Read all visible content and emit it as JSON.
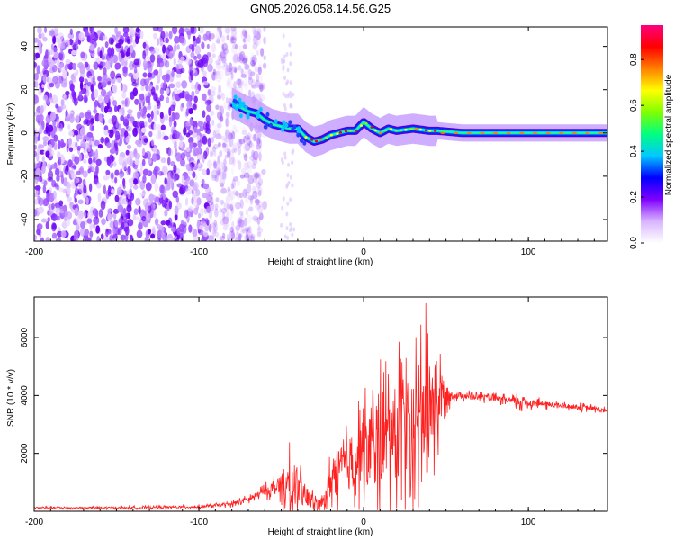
{
  "title": "GN05.2026.058.14.56.G25",
  "chart_data": [
    {
      "type": "heatmap",
      "title": "GN05.2026.058.14.56.G25",
      "xlabel": "Height of straight line (km)",
      "ylabel": "Frequency (Hz)",
      "xlim": [
        -200,
        148
      ],
      "ylim": [
        -50,
        49
      ],
      "xticks": [
        "-200",
        "-100",
        "0",
        "100"
      ],
      "yticks": [
        "-40",
        "-20",
        "0",
        "20",
        "40"
      ],
      "ridge": {
        "description": "dominant frequency trace",
        "x": [
          -80,
          -75,
          -70,
          -65,
          -60,
          -55,
          -50,
          -45,
          -40,
          -35,
          -30,
          -25,
          -20,
          -15,
          -10,
          -5,
          0,
          5,
          10,
          15,
          20,
          30,
          40,
          45,
          60,
          80,
          100,
          120,
          148
        ],
        "y": [
          14,
          12,
          10,
          9,
          6,
          4,
          3,
          2,
          2,
          -2,
          -4,
          -3,
          -1,
          0,
          1,
          1,
          5,
          2,
          0,
          2,
          1,
          2,
          1,
          1,
          0,
          0,
          0,
          0,
          0
        ]
      },
      "noise_region_x": [
        -200,
        -68
      ],
      "colorbar": {
        "label": "Normalized spectral amplitude",
        "range": [
          0,
          0.95
        ],
        "ticks": [
          "0.0",
          "0.2",
          "0.4",
          "0.6",
          "0.8"
        ],
        "colors": [
          "#ffffff",
          "#d8b4ff",
          "#7f00ff",
          "#0000ff",
          "#00c8ff",
          "#00ff80",
          "#80ff00",
          "#ffff00",
          "#ff8000",
          "#ff0000",
          "#ff0080"
        ]
      }
    },
    {
      "type": "line",
      "xlabel": "Height of straight line (km)",
      "ylabel": "SNR (10 * v/v)",
      "xlim": [
        -200,
        148
      ],
      "ylim": [
        0,
        7400
      ],
      "xticks": [
        "-200",
        "-100",
        "0",
        "100"
      ],
      "yticks": [
        "2000",
        "4000",
        "6000"
      ],
      "color": "#ff2020",
      "envelope": {
        "x": [
          -200,
          -150,
          -100,
          -80,
          -70,
          -60,
          -50,
          -45,
          -40,
          -35,
          -30,
          -25,
          -20,
          -15,
          -10,
          -5,
          0,
          5,
          10,
          15,
          20,
          25,
          30,
          35,
          40,
          45,
          50,
          55,
          60,
          70,
          80,
          90,
          95,
          100,
          110,
          120,
          130,
          140,
          148
        ],
        "base": [
          120,
          120,
          150,
          250,
          400,
          700,
          900,
          900,
          700,
          500,
          300,
          250,
          1100,
          1400,
          1600,
          1800,
          2000,
          2200,
          2400,
          2600,
          2800,
          3000,
          3200,
          3400,
          3700,
          3900,
          4000,
          4000,
          4000,
          3950,
          3900,
          3800,
          3800,
          3750,
          3700,
          3650,
          3600,
          3550,
          3450
        ],
        "amp": [
          60,
          60,
          70,
          120,
          200,
          300,
          700,
          1500,
          1100,
          900,
          400,
          300,
          1200,
          1700,
          2000,
          2300,
          2500,
          2800,
          3000,
          3200,
          3400,
          3600,
          3800,
          3900,
          3600,
          2600,
          700,
          250,
          220,
          200,
          200,
          220,
          500,
          250,
          200,
          180,
          160,
          150,
          150
        ]
      }
    }
  ]
}
